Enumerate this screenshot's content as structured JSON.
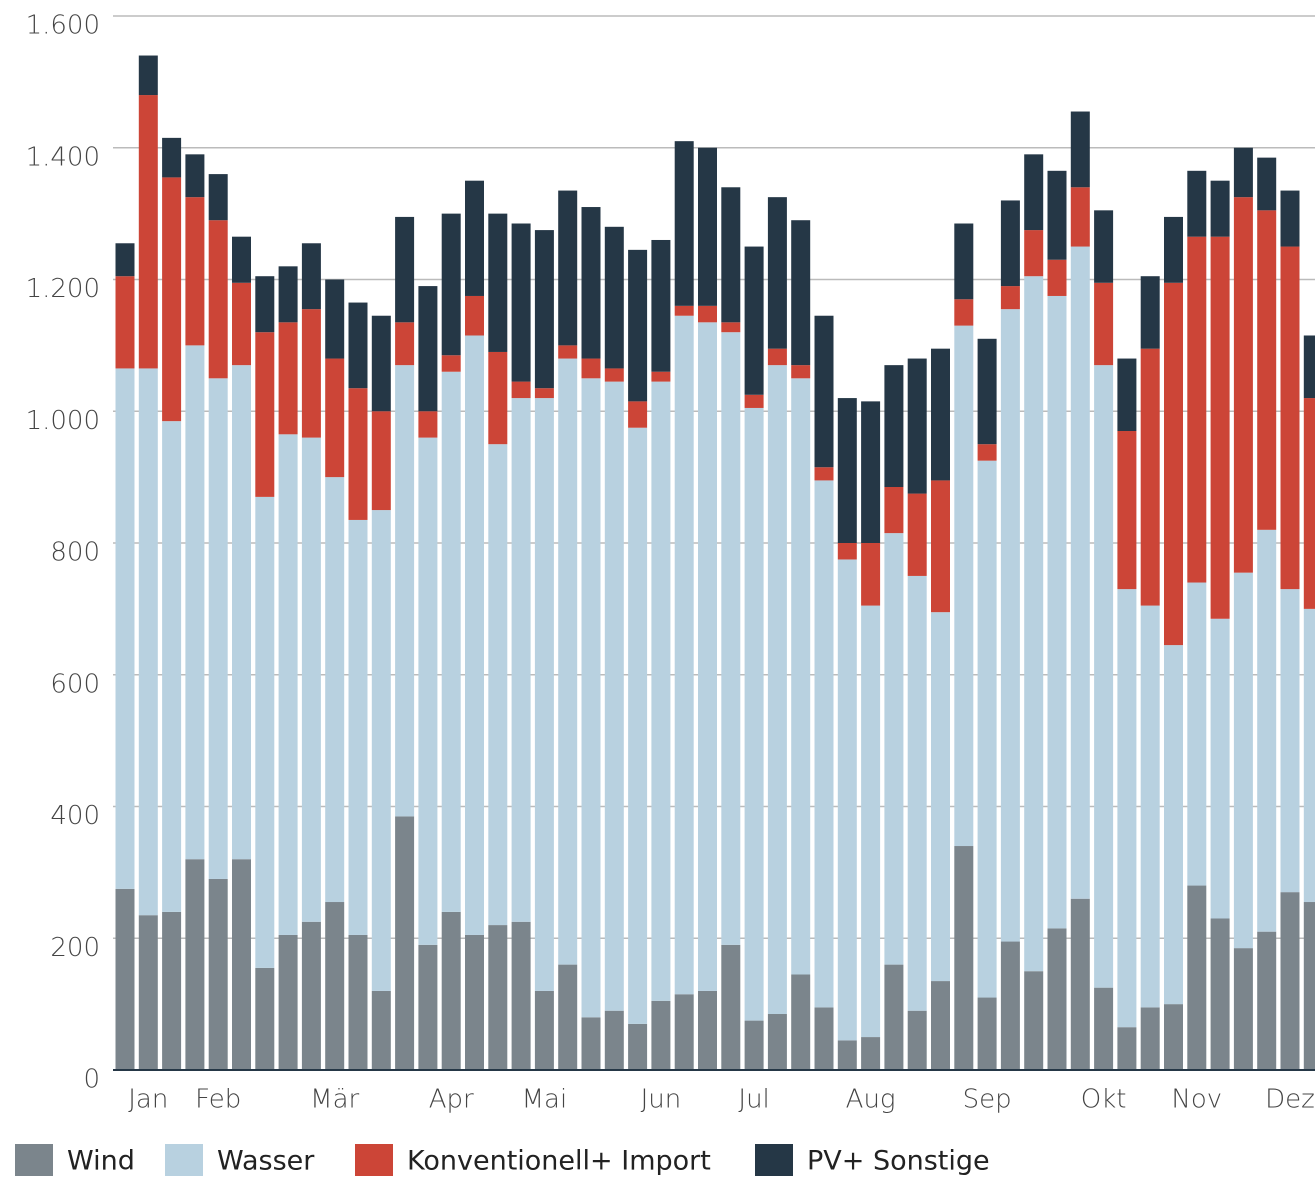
{
  "chart_data": {
    "type": "stacked_bar",
    "categories": [
      null,
      "Jan",
      null,
      null,
      "Feb",
      null,
      null,
      null,
      null,
      "Mär",
      null,
      null,
      null,
      null,
      "Apr",
      null,
      null,
      null,
      "Mai",
      null,
      null,
      null,
      null,
      "Jun",
      null,
      null,
      null,
      "Jul",
      null,
      null,
      null,
      null,
      "Aug",
      null,
      null,
      null,
      null,
      "Sep",
      null,
      null,
      null,
      null,
      "Okt",
      null,
      null,
      null,
      "Nov",
      null,
      null,
      null,
      "Dez",
      null
    ],
    "series": [
      {
        "name": "Wind",
        "color": "#7b858c",
        "values": [
          275,
          235,
          240,
          320,
          290,
          320,
          155,
          205,
          225,
          255,
          205,
          120,
          385,
          190,
          240,
          205,
          220,
          225,
          120,
          160,
          80,
          90,
          70,
          105,
          115,
          120,
          190,
          75,
          85,
          145,
          95,
          45,
          50,
          160,
          90,
          135,
          340,
          110,
          195,
          150,
          215,
          260,
          125,
          65,
          95,
          100,
          280,
          230,
          185,
          210,
          270,
          255
        ]
      },
      {
        "name": "Wasser",
        "color": "#b8d1e0",
        "values": [
          790,
          830,
          745,
          780,
          760,
          750,
          715,
          760,
          735,
          645,
          630,
          730,
          685,
          770,
          820,
          910,
          730,
          795,
          900,
          920,
          970,
          955,
          905,
          940,
          1030,
          1015,
          930,
          930,
          985,
          905,
          800,
          730,
          655,
          655,
          660,
          560,
          790,
          815,
          960,
          1055,
          960,
          990,
          945,
          665,
          610,
          545,
          460,
          455,
          570,
          610,
          460,
          445
        ]
      },
      {
        "name": "Konventionell+ Import",
        "color": "#cc4537",
        "values": [
          140,
          415,
          370,
          225,
          240,
          125,
          250,
          170,
          195,
          180,
          200,
          150,
          65,
          40,
          25,
          60,
          140,
          25,
          15,
          20,
          30,
          20,
          40,
          15,
          15,
          25,
          15,
          20,
          25,
          20,
          20,
          25,
          95,
          70,
          125,
          200,
          40,
          25,
          35,
          70,
          55,
          90,
          125,
          240,
          390,
          550,
          525,
          580,
          570,
          485,
          520,
          320
        ]
      },
      {
        "name": "PV+ Sonstige",
        "color": "#253746",
        "values": [
          50,
          60,
          60,
          65,
          70,
          70,
          85,
          85,
          100,
          120,
          130,
          145,
          160,
          190,
          215,
          175,
          210,
          240,
          240,
          235,
          230,
          215,
          230,
          200,
          250,
          240,
          205,
          225,
          230,
          220,
          230,
          220,
          215,
          185,
          205,
          200,
          115,
          160,
          130,
          115,
          135,
          115,
          110,
          110,
          110,
          100,
          100,
          85,
          75,
          80,
          85,
          95
        ]
      }
    ],
    "ylim": [
      0,
      1600
    ],
    "yticks": [
      0,
      200,
      400,
      600,
      800,
      {
        "value": 1000,
        "label": "1.000"
      },
      {
        "value": 1200,
        "label": "1.200"
      },
      {
        "value": 1400,
        "label": "1.400"
      },
      {
        "value": 1600,
        "label": "1.600"
      }
    ],
    "grid": true,
    "legend": "bottom"
  }
}
